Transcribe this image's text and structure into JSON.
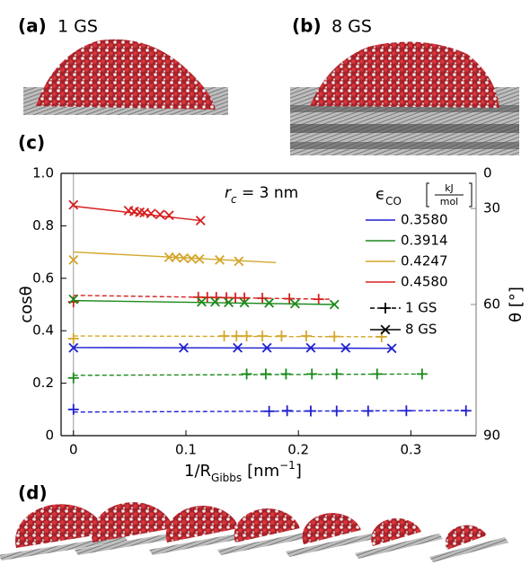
{
  "panels": {
    "a_label": "(a)",
    "a_text": "1 GS",
    "b_label": "(b)",
    "b_text": "8 GS",
    "c_label": "(c)",
    "d_label": "(d)"
  },
  "chart_data": {
    "type": "scatter-fit",
    "ylabel": "cosθ",
    "y2label": "θ [°]",
    "xlabel": {
      "main": "1/R",
      "sub": "Gibbs",
      "unit": "[nm",
      "exp": "−1",
      "close": "]"
    },
    "annotation": {
      "symbol": "r",
      "sub": "c",
      "rest": " = 3 nm"
    },
    "xlim": [
      -0.011,
      0.358
    ],
    "xticks": [
      0,
      0.1,
      0.2,
      0.3
    ],
    "ylim": [
      0,
      1
    ],
    "yticks": [
      0,
      0.2,
      0.4,
      0.6,
      0.8,
      {
        "value": 1,
        "label": "1.0"
      }
    ],
    "y2lim": [
      90,
      0
    ],
    "y2_scale": "cos",
    "y2ticks": [
      0,
      30,
      60,
      90
    ],
    "legend": {
      "title_symbol": "ϵ",
      "title_sub": "CO",
      "unit_num": "kJ",
      "unit_den": "mol",
      "colors": [
        {
          "label": "0.3580",
          "color": "#1f1fcf"
        },
        {
          "label": "0.3914",
          "color": "#1a8a1a"
        },
        {
          "label": "0.4247",
          "color": "#d4a62a"
        },
        {
          "label": "0.4580",
          "color": "#d62020"
        }
      ],
      "styles": [
        {
          "label": "1 GS",
          "marker": "+",
          "dashed": true
        },
        {
          "label": "8 GS",
          "marker": "x",
          "dashed": false
        }
      ]
    },
    "series": [
      {
        "color": "#d62020",
        "marker": "x",
        "dashed": false,
        "x": [
          0,
          0.049,
          0.054,
          0.059,
          0.063,
          0.069,
          0.077,
          0.085,
          0.113
        ],
        "values": [
          0.88,
          0.858,
          0.855,
          0.852,
          0.85,
          0.847,
          0.843,
          0.84,
          0.82
        ],
        "fit_x": [
          0,
          0.113
        ],
        "fit_y": [
          0.875,
          0.82
        ]
      },
      {
        "color": "#d4a62a",
        "marker": "x",
        "dashed": false,
        "x": [
          0,
          0.085,
          0.091,
          0.098,
          0.105,
          0.112,
          0.13,
          0.147
        ],
        "values": [
          0.67,
          0.68,
          0.68,
          0.677,
          0.675,
          0.673,
          0.67,
          0.665
        ],
        "fit_x": [
          0,
          0.18
        ],
        "fit_y": [
          0.7,
          0.66
        ]
      },
      {
        "color": "#d62020",
        "marker": "+",
        "dashed": true,
        "x": [
          0,
          0.111,
          0.119,
          0.127,
          0.136,
          0.144,
          0.152,
          0.168,
          0.192,
          0.218
        ],
        "values": [
          0.51,
          0.528,
          0.527,
          0.527,
          0.526,
          0.525,
          0.525,
          0.524,
          0.522,
          0.52
        ],
        "fit_x": [
          0,
          0.23
        ],
        "fit_y": [
          0.535,
          0.52
        ]
      },
      {
        "color": "#1a8a1a",
        "marker": "x",
        "dashed": false,
        "x": [
          0,
          0.114,
          0.126,
          0.138,
          0.152,
          0.174,
          0.197,
          0.232
        ],
        "values": [
          0.52,
          0.51,
          0.51,
          0.508,
          0.507,
          0.506,
          0.503,
          0.5
        ],
        "fit_x": [
          0,
          0.232
        ],
        "fit_y": [
          0.515,
          0.5
        ]
      },
      {
        "color": "#d4a62a",
        "marker": "+",
        "dashed": true,
        "x": [
          0,
          0.134,
          0.145,
          0.154,
          0.168,
          0.185,
          0.207,
          0.232,
          0.274
        ],
        "values": [
          0.37,
          0.38,
          0.38,
          0.38,
          0.38,
          0.38,
          0.38,
          0.378,
          0.377
        ],
        "fit_x": [
          0,
          0.274
        ],
        "fit_y": [
          0.38,
          0.377
        ]
      },
      {
        "color": "#1f1fcf",
        "marker": "x",
        "dashed": false,
        "x": [
          0,
          0.098,
          0.146,
          0.172,
          0.211,
          0.242,
          0.283
        ],
        "values": [
          0.335,
          0.335,
          0.335,
          0.335,
          0.335,
          0.335,
          0.333
        ],
        "fit_x": [
          0,
          0.283
        ],
        "fit_y": [
          0.336,
          0.333
        ]
      },
      {
        "color": "#1a8a1a",
        "marker": "+",
        "dashed": true,
        "x": [
          0,
          0.154,
          0.171,
          0.189,
          0.212,
          0.234,
          0.27,
          0.31
        ],
        "values": [
          0.22,
          0.235,
          0.235,
          0.235,
          0.235,
          0.235,
          0.235,
          0.235
        ],
        "fit_x": [
          0,
          0.31
        ],
        "fit_y": [
          0.23,
          0.235
        ]
      },
      {
        "color": "#1f1fcf",
        "marker": "+",
        "dashed": true,
        "x": [
          0,
          0.174,
          0.19,
          0.211,
          0.234,
          0.262,
          0.296,
          0.349
        ],
        "values": [
          0.1,
          0.093,
          0.095,
          0.094,
          0.094,
          0.094,
          0.095,
          0.095
        ],
        "fit_x": [
          0,
          0.349
        ],
        "fit_y": [
          0.09,
          0.096
        ]
      }
    ]
  }
}
